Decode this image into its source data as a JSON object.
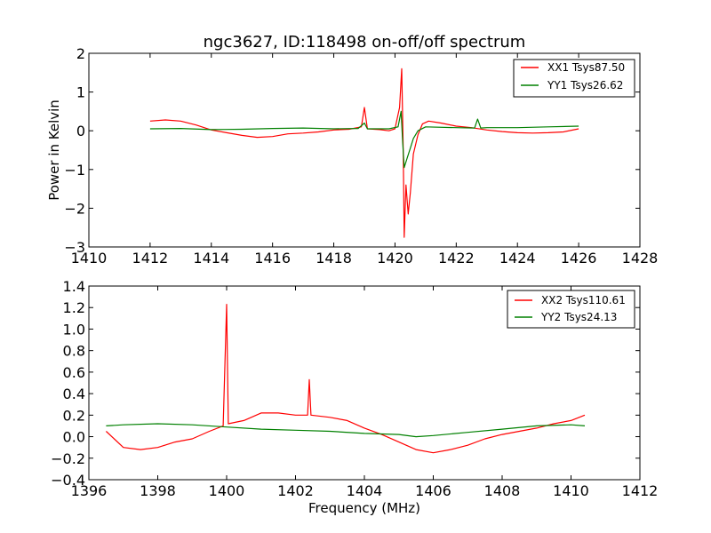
{
  "chart_data": [
    {
      "type": "line",
      "title": "ngc3627, ID:118498 on-off/off spectrum",
      "xlabel": "",
      "ylabel": "Power in Kelvin",
      "xlim": [
        1410,
        1428
      ],
      "ylim": [
        -3,
        2
      ],
      "xticks": [
        1410,
        1412,
        1414,
        1416,
        1418,
        1420,
        1422,
        1424,
        1426,
        1428
      ],
      "yticks": [
        -3,
        -2,
        -1,
        0,
        1,
        2
      ],
      "grid": false,
      "legend_position": "top-right",
      "series": [
        {
          "name": "XX1 Tsys87.50",
          "color": "#ff0000",
          "points": [
            [
              1412.0,
              0.25
            ],
            [
              1412.5,
              0.28
            ],
            [
              1413.0,
              0.25
            ],
            [
              1413.5,
              0.15
            ],
            [
              1414.0,
              0.02
            ],
            [
              1414.5,
              -0.05
            ],
            [
              1415.0,
              -0.12
            ],
            [
              1415.5,
              -0.17
            ],
            [
              1416.0,
              -0.15
            ],
            [
              1416.5,
              -0.08
            ],
            [
              1417.0,
              -0.06
            ],
            [
              1417.5,
              -0.03
            ],
            [
              1418.0,
              0.02
            ],
            [
              1418.5,
              0.04
            ],
            [
              1418.9,
              0.1
            ],
            [
              1419.0,
              0.6
            ],
            [
              1419.1,
              0.05
            ],
            [
              1419.5,
              0.03
            ],
            [
              1419.8,
              0.0
            ],
            [
              1420.0,
              0.05
            ],
            [
              1420.15,
              0.6
            ],
            [
              1420.22,
              1.6
            ],
            [
              1420.27,
              -0.5
            ],
            [
              1420.3,
              -2.75
            ],
            [
              1420.36,
              -1.4
            ],
            [
              1420.43,
              -2.15
            ],
            [
              1420.5,
              -1.6
            ],
            [
              1420.6,
              -0.6
            ],
            [
              1420.75,
              -0.1
            ],
            [
              1420.9,
              0.18
            ],
            [
              1421.1,
              0.25
            ],
            [
              1421.5,
              0.2
            ],
            [
              1422.0,
              0.12
            ],
            [
              1422.5,
              0.08
            ],
            [
              1423.0,
              0.02
            ],
            [
              1423.5,
              -0.02
            ],
            [
              1424.0,
              -0.05
            ],
            [
              1424.5,
              -0.06
            ],
            [
              1425.0,
              -0.05
            ],
            [
              1425.5,
              -0.03
            ],
            [
              1426.0,
              0.05
            ]
          ]
        },
        {
          "name": "YY1 Tsys26.62",
          "color": "#008000",
          "points": [
            [
              1412.0,
              0.05
            ],
            [
              1413.0,
              0.06
            ],
            [
              1414.0,
              0.03
            ],
            [
              1415.0,
              0.04
            ],
            [
              1416.0,
              0.06
            ],
            [
              1417.0,
              0.07
            ],
            [
              1418.0,
              0.05
            ],
            [
              1418.8,
              0.06
            ],
            [
              1419.0,
              0.2
            ],
            [
              1419.1,
              0.05
            ],
            [
              1419.8,
              0.05
            ],
            [
              1420.1,
              0.1
            ],
            [
              1420.2,
              0.5
            ],
            [
              1420.25,
              -0.3
            ],
            [
              1420.3,
              -0.95
            ],
            [
              1420.4,
              -0.7
            ],
            [
              1420.5,
              -0.45
            ],
            [
              1420.6,
              -0.2
            ],
            [
              1420.75,
              0.0
            ],
            [
              1421.0,
              0.1
            ],
            [
              1422.0,
              0.08
            ],
            [
              1422.6,
              0.07
            ],
            [
              1422.7,
              0.3
            ],
            [
              1422.8,
              0.07
            ],
            [
              1423.0,
              0.08
            ],
            [
              1424.0,
              0.08
            ],
            [
              1425.0,
              0.1
            ],
            [
              1426.0,
              0.12
            ]
          ]
        }
      ]
    },
    {
      "type": "line",
      "title": "",
      "xlabel": "Frequency (MHz)",
      "ylabel": "",
      "xlim": [
        1396,
        1412
      ],
      "ylim": [
        -0.4,
        1.4
      ],
      "xticks": [
        1396,
        1398,
        1400,
        1402,
        1404,
        1406,
        1408,
        1410,
        1412
      ],
      "yticks": [
        -0.4,
        -0.2,
        0.0,
        0.2,
        0.4,
        0.6,
        0.8,
        1.0,
        1.2,
        1.4
      ],
      "grid": false,
      "legend_position": "top-right",
      "series": [
        {
          "name": "XX2 Tsys110.61",
          "color": "#ff0000",
          "points": [
            [
              1396.5,
              0.05
            ],
            [
              1397.0,
              -0.1
            ],
            [
              1397.5,
              -0.12
            ],
            [
              1398.0,
              -0.1
            ],
            [
              1398.5,
              -0.05
            ],
            [
              1399.0,
              -0.02
            ],
            [
              1399.5,
              0.05
            ],
            [
              1399.9,
              0.1
            ],
            [
              1400.0,
              1.23
            ],
            [
              1400.05,
              0.12
            ],
            [
              1400.5,
              0.15
            ],
            [
              1401.0,
              0.22
            ],
            [
              1401.5,
              0.22
            ],
            [
              1402.0,
              0.2
            ],
            [
              1402.35,
              0.2
            ],
            [
              1402.4,
              0.53
            ],
            [
              1402.45,
              0.2
            ],
            [
              1403.0,
              0.18
            ],
            [
              1403.5,
              0.15
            ],
            [
              1404.0,
              0.08
            ],
            [
              1404.5,
              0.02
            ],
            [
              1405.0,
              -0.05
            ],
            [
              1405.5,
              -0.12
            ],
            [
              1406.0,
              -0.15
            ],
            [
              1406.5,
              -0.12
            ],
            [
              1407.0,
              -0.08
            ],
            [
              1407.5,
              -0.02
            ],
            [
              1408.0,
              0.02
            ],
            [
              1408.5,
              0.05
            ],
            [
              1409.0,
              0.08
            ],
            [
              1409.5,
              0.12
            ],
            [
              1410.0,
              0.15
            ],
            [
              1410.4,
              0.2
            ]
          ]
        },
        {
          "name": "YY2 Tsys24.13",
          "color": "#008000",
          "points": [
            [
              1396.5,
              0.1
            ],
            [
              1397.0,
              0.11
            ],
            [
              1398.0,
              0.12
            ],
            [
              1399.0,
              0.11
            ],
            [
              1400.0,
              0.09
            ],
            [
              1401.0,
              0.07
            ],
            [
              1402.0,
              0.06
            ],
            [
              1403.0,
              0.05
            ],
            [
              1404.0,
              0.03
            ],
            [
              1405.0,
              0.02
            ],
            [
              1405.5,
              0.0
            ],
            [
              1406.0,
              0.01
            ],
            [
              1407.0,
              0.04
            ],
            [
              1408.0,
              0.07
            ],
            [
              1409.0,
              0.1
            ],
            [
              1410.0,
              0.11
            ],
            [
              1410.4,
              0.1
            ]
          ]
        }
      ]
    }
  ]
}
